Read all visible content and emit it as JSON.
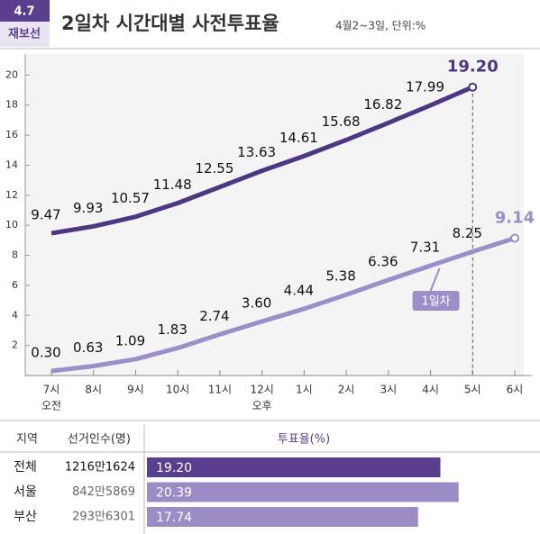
{
  "header": {
    "badge": [
      "4.7",
      "재보선"
    ],
    "subtitle": "4월2~3일, 단위:%"
  },
  "chart_data": [
    {
      "type": "line",
      "title": "2일차 시간대별 사전투표율",
      "categories": [
        "7시",
        "8시",
        "9시",
        "10시",
        "11시",
        "12시",
        "1시",
        "2시",
        "3시",
        "4시",
        "5시",
        "6시"
      ],
      "x_sublabels": [
        "오전",
        null,
        null,
        null,
        null,
        "오후",
        null,
        null,
        null,
        null,
        null,
        null
      ],
      "series": [
        {
          "color": "#4f3684",
          "values": [
            9.47,
            9.93,
            10.57,
            11.48,
            12.55,
            13.63,
            14.61,
            15.68,
            16.82,
            17.99,
            19.2,
            null
          ],
          "value_labels": [
            "9.47",
            "9.93",
            "10.57",
            "11.48",
            "12.55",
            "13.63",
            "14.61",
            "15.68",
            "16.82",
            "17.99",
            "19.20",
            null
          ]
        },
        {
          "name": "1일차",
          "color": "#9c8ec9",
          "values": [
            0.3,
            0.63,
            1.09,
            1.83,
            2.74,
            3.6,
            4.44,
            5.38,
            6.36,
            7.31,
            8.25,
            9.14
          ],
          "value_labels": [
            "0.30",
            "0.63",
            "1.09",
            "1.83",
            "2.74",
            "3.60",
            "4.44",
            "5.38",
            "6.36",
            "7.31",
            "8.25",
            "9.14"
          ]
        }
      ],
      "ylim": [
        0,
        21.4
      ],
      "yticks": [
        2,
        4,
        6,
        8,
        10,
        12,
        14,
        16,
        18,
        20
      ]
    },
    {
      "type": "bar",
      "orientation": "horizontal",
      "columns": [
        "지역",
        "선거인수(명)",
        "투표율(%)"
      ],
      "categories": [
        "전체",
        "서울",
        "부산"
      ],
      "voters": [
        "1216만1624",
        "842만5869",
        "293만6301"
      ],
      "values": [
        19.2,
        20.39,
        17.74
      ],
      "value_labels": [
        "19.20",
        "20.39",
        "17.74"
      ],
      "colors": [
        "#5b3f8f",
        "#9b8cc6",
        "#9b8cc6"
      ],
      "xlim": [
        0,
        25.6
      ]
    }
  ]
}
